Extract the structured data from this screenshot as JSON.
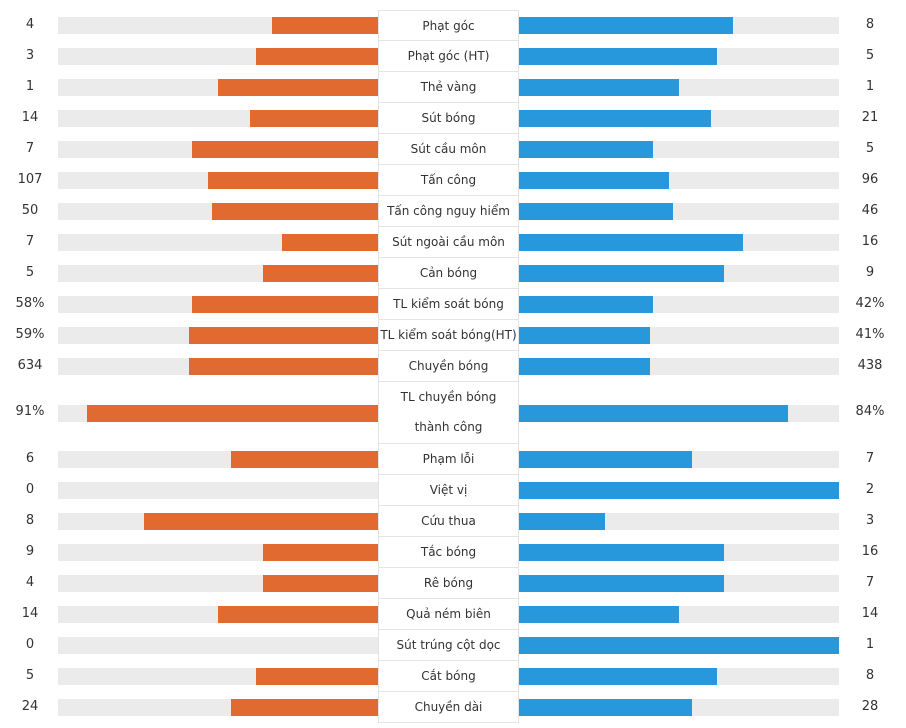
{
  "colors": {
    "home": "#e06a2f",
    "away": "#2898dc",
    "track": "#ebebeb"
  },
  "chart_data": {
    "type": "bar",
    "categories": [
      "Phạt góc",
      "Phạt góc (HT)",
      "Thẻ vàng",
      "Sút bóng",
      "Sút cầu môn",
      "Tấn công",
      "Tấn công nguy hiểm",
      "Sút ngoài cầu môn",
      "Cản bóng",
      "TL kiểm soát bóng",
      "TL kiểm soát bóng(HT)",
      "Chuyền bóng",
      "TL chuyền bóng thành công",
      "Phạm lỗi",
      "Việt vị",
      "Cứu thua",
      "Tắc bóng",
      "Rê bóng",
      "Quả ném biên",
      "Sút trúng cột dọc",
      "Cắt bóng",
      "Chuyền dài"
    ],
    "series": [
      {
        "values": [
          4,
          3,
          1,
          14,
          7,
          107,
          50,
          7,
          5,
          58,
          59,
          634,
          91,
          6,
          0,
          8,
          9,
          4,
          14,
          0,
          5,
          24
        ]
      },
      {
        "values": [
          8,
          5,
          1,
          21,
          5,
          96,
          46,
          16,
          9,
          42,
          41,
          438,
          84,
          7,
          2,
          3,
          16,
          7,
          14,
          1,
          8,
          28
        ]
      }
    ],
    "rows": [
      {
        "label": "Phạt góc",
        "home": "4",
        "away": "8",
        "home_fill": 0.33,
        "away_fill": 0.67
      },
      {
        "label": "Phạt góc (HT)",
        "home": "3",
        "away": "5",
        "home_fill": 0.38,
        "away_fill": 0.62
      },
      {
        "label": "Thẻ vàng",
        "home": "1",
        "away": "1",
        "home_fill": 0.5,
        "away_fill": 0.5
      },
      {
        "label": "Sút bóng",
        "home": "14",
        "away": "21",
        "home_fill": 0.4,
        "away_fill": 0.6
      },
      {
        "label": "Sút cầu môn",
        "home": "7",
        "away": "5",
        "home_fill": 0.58,
        "away_fill": 0.42
      },
      {
        "label": "Tấn công",
        "home": "107",
        "away": "96",
        "home_fill": 0.53,
        "away_fill": 0.47
      },
      {
        "label": "Tấn công nguy hiểm",
        "home": "50",
        "away": "46",
        "home_fill": 0.52,
        "away_fill": 0.48
      },
      {
        "label": "Sút ngoài cầu môn",
        "home": "7",
        "away": "16",
        "home_fill": 0.3,
        "away_fill": 0.7
      },
      {
        "label": "Cản bóng",
        "home": "5",
        "away": "9",
        "home_fill": 0.36,
        "away_fill": 0.64
      },
      {
        "label": "TL kiểm soát bóng",
        "home": "58%",
        "away": "42%",
        "home_fill": 0.58,
        "away_fill": 0.42
      },
      {
        "label": "TL kiểm soát bóng(HT)",
        "home": "59%",
        "away": "41%",
        "home_fill": 0.59,
        "away_fill": 0.41
      },
      {
        "label": "Chuyền bóng",
        "home": "634",
        "away": "438",
        "home_fill": 0.59,
        "away_fill": 0.41
      },
      {
        "label": "TL chuyền bóng thành công",
        "home": "91%",
        "away": "84%",
        "home_fill": 0.91,
        "away_fill": 0.84
      },
      {
        "label": "Phạm lỗi",
        "home": "6",
        "away": "7",
        "home_fill": 0.46,
        "away_fill": 0.54
      },
      {
        "label": "Việt vị",
        "home": "0",
        "away": "2",
        "home_fill": 0,
        "away_fill": 1
      },
      {
        "label": "Cứu thua",
        "home": "8",
        "away": "3",
        "home_fill": 0.73,
        "away_fill": 0.27
      },
      {
        "label": "Tắc bóng",
        "home": "9",
        "away": "16",
        "home_fill": 0.36,
        "away_fill": 0.64
      },
      {
        "label": "Rê bóng",
        "home": "4",
        "away": "7",
        "home_fill": 0.36,
        "away_fill": 0.64
      },
      {
        "label": "Quả ném biên",
        "home": "14",
        "away": "14",
        "home_fill": 0.5,
        "away_fill": 0.5
      },
      {
        "label": "Sút trúng cột dọc",
        "home": "0",
        "away": "1",
        "home_fill": 0,
        "away_fill": 1
      },
      {
        "label": "Cắt bóng",
        "home": "5",
        "away": "8",
        "home_fill": 0.38,
        "away_fill": 0.62
      },
      {
        "label": "Chuyền dài",
        "home": "24",
        "away": "28",
        "home_fill": 0.46,
        "away_fill": 0.54
      }
    ]
  }
}
